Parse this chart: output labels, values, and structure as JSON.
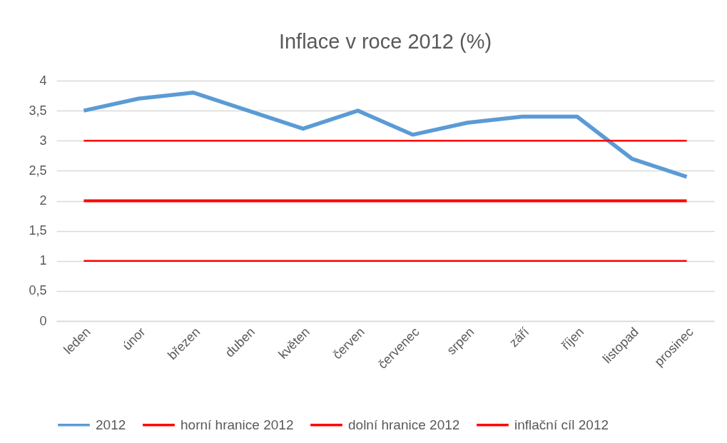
{
  "chart_data": {
    "type": "line",
    "title": "Inflace v roce 2012 (%)",
    "categories": [
      "leden",
      "únor",
      "březen",
      "duben",
      "květen",
      "červen",
      "červenec",
      "srpen",
      "září",
      "říjen",
      "listopad",
      "prosinec"
    ],
    "series": [
      {
        "name": "2012",
        "color": "#5b9bd5",
        "values": [
          3.5,
          3.7,
          3.8,
          3.5,
          3.2,
          3.5,
          3.1,
          3.3,
          3.4,
          3.4,
          2.7,
          2.4
        ]
      },
      {
        "name": "horní hranice 2012",
        "color": "#ff0000",
        "values": [
          3,
          3,
          3,
          3,
          3,
          3,
          3,
          3,
          3,
          3,
          3,
          3
        ]
      },
      {
        "name": "dolní hranice 2012",
        "color": "#ff0000",
        "values": [
          1,
          1,
          1,
          1,
          1,
          1,
          1,
          1,
          1,
          1,
          1,
          1
        ]
      },
      {
        "name": "inflační cíl 2012",
        "color": "#ff0000",
        "values": [
          2,
          2,
          2,
          2,
          2,
          2,
          2,
          2,
          2,
          2,
          2,
          2
        ]
      }
    ],
    "ylim": [
      0,
      4
    ],
    "yticks": [
      0,
      {
        "value": 0.5,
        "label": "0,5"
      },
      1,
      {
        "value": 1.5,
        "label": "1,5"
      },
      2,
      {
        "value": 2.5,
        "label": "2,5"
      },
      3,
      {
        "value": 3.5,
        "label": "3,5"
      },
      4
    ],
    "grid": "y",
    "legend": "bottom",
    "marker": "none"
  }
}
